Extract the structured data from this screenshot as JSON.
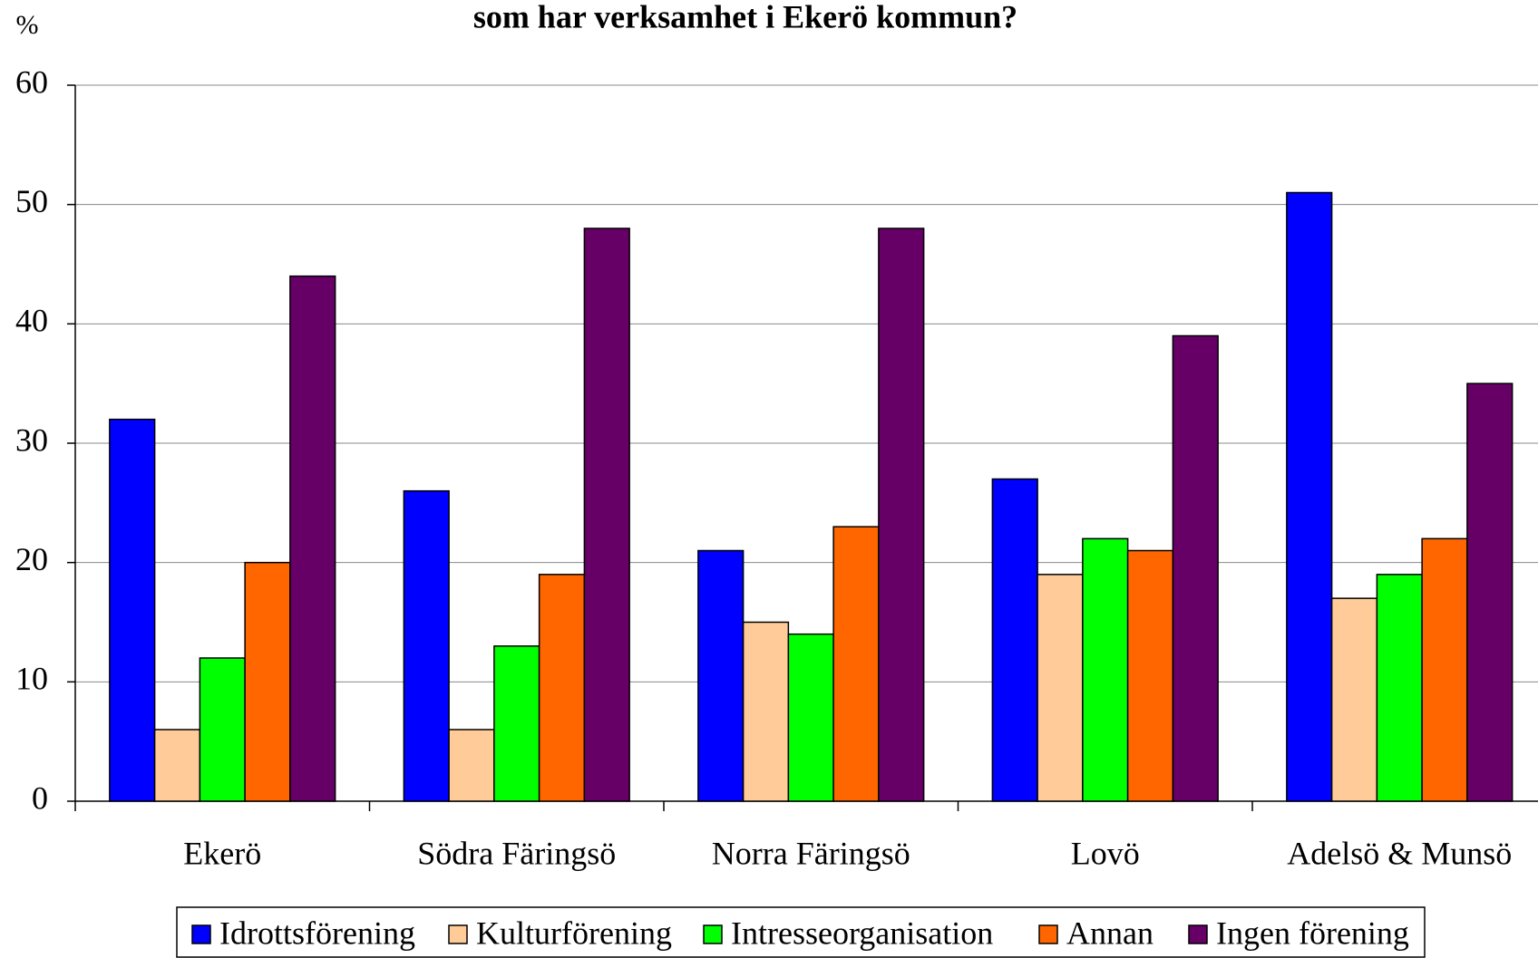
{
  "chart_data": {
    "type": "bar",
    "title": "som har verksamhet i Ekerö kommun?",
    "y_label": "%",
    "categories": [
      "Ekerö",
      "Södra Färingsö",
      "Norra Färingsö",
      "Lovö",
      "Adelsö & Munsö"
    ],
    "series": [
      {
        "name": "Idrottsförening",
        "color": "#0000ff",
        "values": [
          32,
          26,
          21,
          27,
          51
        ]
      },
      {
        "name": "Kulturförening",
        "color": "#ffcc99",
        "values": [
          6,
          6,
          15,
          19,
          17
        ]
      },
      {
        "name": "Intresseorganisation",
        "color": "#00ff00",
        "values": [
          12,
          13,
          14,
          22,
          19
        ]
      },
      {
        "name": "Annan",
        "color": "#ff6600",
        "values": [
          20,
          19,
          23,
          21,
          22
        ]
      },
      {
        "name": "Ingen förening",
        "color": "#660066",
        "values": [
          44,
          48,
          48,
          39,
          35
        ]
      }
    ],
    "ylim": [
      0,
      60
    ],
    "yticks": [
      0,
      10,
      20,
      30,
      40,
      50,
      60
    ],
    "grid": true,
    "legend": "bottom"
  }
}
